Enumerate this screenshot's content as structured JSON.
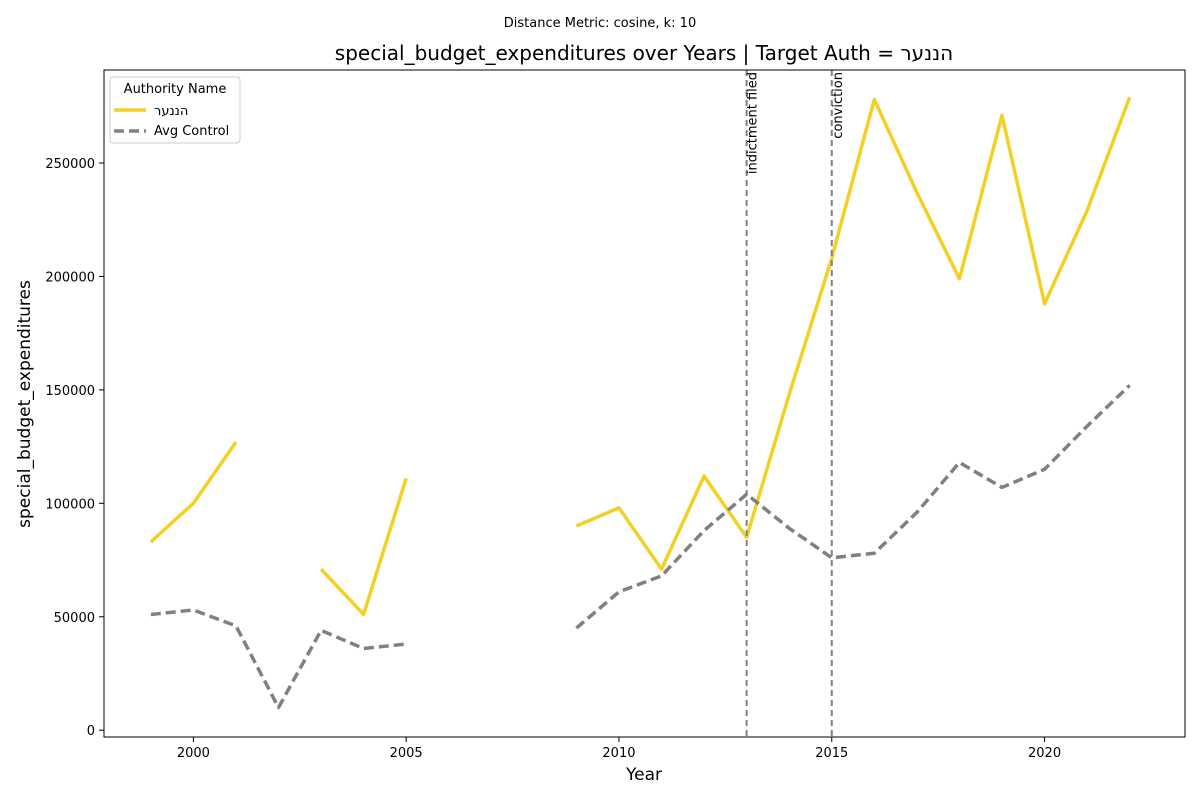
{
  "chart_data": {
    "type": "line",
    "suptitle": "Distance Metric: cosine, k: 10",
    "title": "special_budget_expenditures over Years | Target Auth = הננער",
    "xlabel": "Year",
    "ylabel": "special_budget_expenditures",
    "xlim": [
      1997.9,
      2023.3
    ],
    "ylim": [
      -3000,
      291000
    ],
    "x_ticks": [
      2000,
      2005,
      2010,
      2015,
      2020
    ],
    "y_ticks": [
      0,
      50000,
      100000,
      150000,
      200000,
      250000
    ],
    "grid": false,
    "legend": {
      "title": "Authority Name",
      "placement": "top-left"
    },
    "series": [
      {
        "name": "הננער",
        "color": "#f2d024",
        "style": "solid",
        "x": [
          1999,
          2000,
          2001,
          2002,
          2003,
          2004,
          2005,
          2006,
          2007,
          2008,
          2009,
          2010,
          2011,
          2012,
          2013,
          2014,
          2015,
          2016,
          2017,
          2018,
          2019,
          2020,
          2021,
          2022
        ],
        "values": [
          83000,
          100000,
          127000,
          null,
          71000,
          51000,
          111000,
          null,
          null,
          null,
          90000,
          98000,
          71000,
          112000,
          85000,
          148000,
          208000,
          278000,
          237000,
          199000,
          271000,
          188000,
          229000,
          279000
        ]
      },
      {
        "name": "Avg Control",
        "color": "#808080",
        "style": "dashed",
        "x": [
          1999,
          2000,
          2001,
          2002,
          2003,
          2004,
          2005,
          2006,
          2007,
          2008,
          2009,
          2010,
          2011,
          2012,
          2013,
          2014,
          2015,
          2016,
          2017,
          2018,
          2019,
          2020,
          2021,
          2022
        ],
        "values": [
          51000,
          53000,
          46000,
          10000,
          44000,
          36000,
          38000,
          null,
          null,
          null,
          45000,
          61000,
          68000,
          88000,
          104000,
          89000,
          76000,
          78000,
          96000,
          118000,
          107000,
          115000,
          134000,
          152000
        ]
      }
    ],
    "events": [
      {
        "x": 2013,
        "label": "indictment filed"
      },
      {
        "x": 2015,
        "label": "conviction"
      }
    ]
  }
}
